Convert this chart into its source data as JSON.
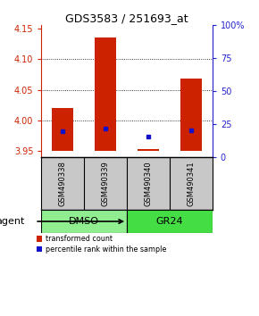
{
  "title": "GDS3583 / 251693_at",
  "samples": [
    "GSM490338",
    "GSM490339",
    "GSM490340",
    "GSM490341"
  ],
  "groups": [
    {
      "label": "DMSO",
      "indices": [
        0,
        1
      ],
      "color": "#90EE90"
    },
    {
      "label": "GR24",
      "indices": [
        2,
        3
      ],
      "color": "#44DD44"
    }
  ],
  "ylim_left": [
    3.94,
    4.155
  ],
  "yticks_left": [
    3.95,
    4.0,
    4.05,
    4.1,
    4.15
  ],
  "ylim_right": [
    0,
    100
  ],
  "yticks_right": [
    0,
    25,
    50,
    75,
    100
  ],
  "bar_bottoms": [
    3.95,
    3.95,
    3.95,
    3.95
  ],
  "bar_tops": [
    4.02,
    4.135,
    3.953,
    4.068
  ],
  "blue_y": [
    3.983,
    3.987,
    3.974,
    3.984
  ],
  "bar_color": "#CC2200",
  "blue_color": "#1111CC",
  "bg_color": "#ffffff",
  "left_tick_color": "#CC2200",
  "right_tick_color": "#2222CC",
  "gridline_ticks": [
    4.0,
    4.05,
    4.1
  ],
  "agent_label": "agent",
  "legend_red": "transformed count",
  "legend_blue": "percentile rank within the sample",
  "bar_width": 0.5,
  "sample_bg": "#C8C8C8",
  "title_fontsize": 9.0
}
